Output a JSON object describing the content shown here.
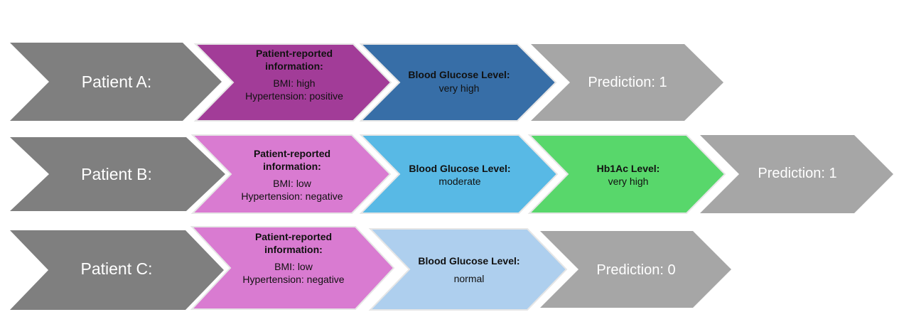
{
  "rows": [
    {
      "patient": "Patient A:",
      "steps": [
        {
          "kind": "info",
          "bold": [
            "Patient-reported",
            "information:"
          ],
          "lines": [
            "BMI: high",
            "Hypertension: positive"
          ],
          "color": "#A23C98"
        },
        {
          "kind": "glucose",
          "bold": [
            "Blood Glucose Level:"
          ],
          "lines": [
            "very high"
          ],
          "color": "#376EA7"
        }
      ],
      "prediction": "Prediction: 1"
    },
    {
      "patient": "Patient B:",
      "steps": [
        {
          "kind": "info",
          "bold": [
            "Patient-reported",
            "information:"
          ],
          "lines": [
            "BMI: low",
            "Hypertension: negative"
          ],
          "color": "#D97BD1"
        },
        {
          "kind": "glucose",
          "bold": [
            "Blood Glucose Level:"
          ],
          "lines": [
            "moderate"
          ],
          "color": "#58B9E5"
        },
        {
          "kind": "hba1c",
          "bold": [
            "Hb1Ac Level:"
          ],
          "lines": [
            "very high"
          ],
          "color": "#58D76B"
        }
      ],
      "prediction": "Prediction: 1"
    },
    {
      "patient": "Patient C:",
      "steps": [
        {
          "kind": "info",
          "bold": [
            "Patient-reported",
            "information:"
          ],
          "lines": [
            "BMI: low",
            "Hypertension: negative"
          ],
          "color": "#D97BD1"
        },
        {
          "kind": "glucose",
          "bold": [
            "Blood Glucose Level:"
          ],
          "lines": [
            "normal"
          ],
          "color": "#AECFEE"
        }
      ],
      "prediction": "Prediction: 0"
    }
  ],
  "colors": {
    "patient_chevron": "#7F7F7F",
    "prediction_chevron": "#A6A6A6",
    "outline": "#E6E6E6"
  }
}
